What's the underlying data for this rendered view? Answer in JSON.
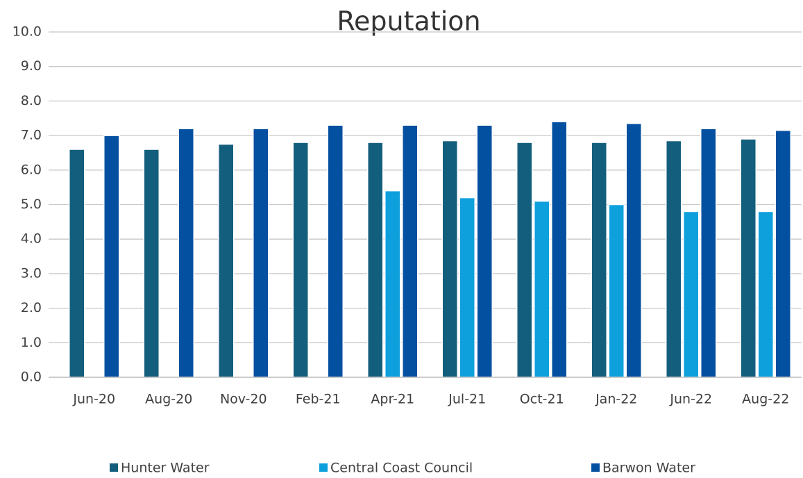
{
  "chart_data": {
    "type": "bar",
    "title": "Reputation",
    "categories": [
      "Jun-20",
      "Aug-20",
      "Nov-20",
      "Feb-21",
      "Apr-21",
      "Jul-21",
      "Oct-21",
      "Jan-22",
      "Jun-22",
      "Aug-22"
    ],
    "series": [
      {
        "name": "Hunter Water",
        "color": "#135e7c",
        "values": [
          6.6,
          6.6,
          6.75,
          6.8,
          6.8,
          6.85,
          6.8,
          6.8,
          6.85,
          6.9
        ]
      },
      {
        "name": "Central Coast Council",
        "color": "#0ea0dc",
        "values": [
          null,
          null,
          null,
          null,
          5.4,
          5.2,
          5.1,
          5.0,
          4.8,
          4.8
        ]
      },
      {
        "name": "Barwon Water",
        "color": "#0450a0",
        "values": [
          7.0,
          7.2,
          7.2,
          7.3,
          7.3,
          7.3,
          7.4,
          7.35,
          7.2,
          7.15
        ]
      }
    ],
    "ylim": [
      0,
      10
    ],
    "yticks": [
      {
        "value": 0,
        "label": "0.0"
      },
      {
        "value": 1,
        "label": "1.0"
      },
      {
        "value": 2,
        "label": "2.0"
      },
      {
        "value": 3,
        "label": "3.0"
      },
      {
        "value": 4,
        "label": "4.0"
      },
      {
        "value": 5,
        "label": "5.0"
      },
      {
        "value": 6,
        "label": "6.0"
      },
      {
        "value": 7,
        "label": "7.0"
      },
      {
        "value": 8,
        "label": "8.0"
      },
      {
        "value": 9,
        "label": "9.0"
      },
      {
        "value": 10,
        "label": "10.0"
      }
    ],
    "grid": true,
    "legend": "bottom"
  }
}
